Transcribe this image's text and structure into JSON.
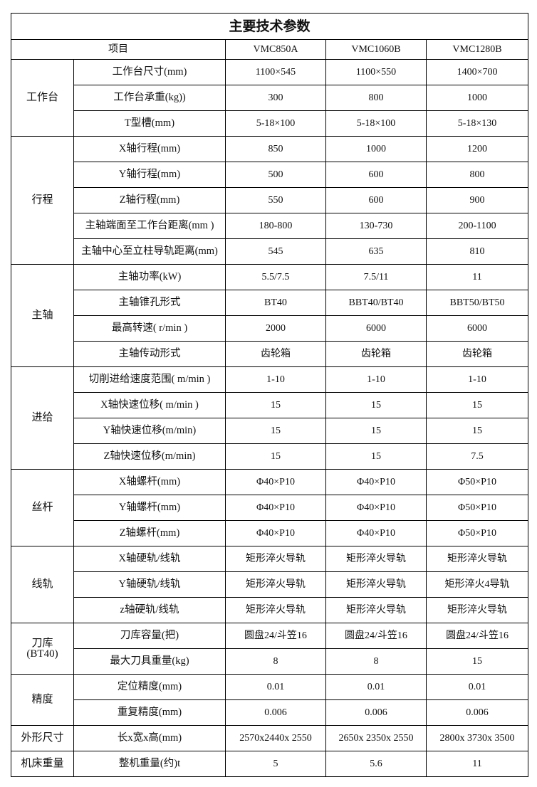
{
  "title": "主要技术参数",
  "header": {
    "item": "项目",
    "models": [
      "VMC850A",
      "VMC1060B",
      "VMC1280B"
    ]
  },
  "groups": [
    {
      "name": "工作台",
      "rows": [
        {
          "param": "工作台尺寸(mm)",
          "values": [
            "1100×545",
            "1100×550",
            "1400×700"
          ]
        },
        {
          "param": "工作台承重(kg))",
          "values": [
            "300",
            "800",
            "1000"
          ]
        },
        {
          "param": "T型槽(mm)",
          "values": [
            "5-18×100",
            "5-18×100",
            "5-18×130"
          ]
        }
      ]
    },
    {
      "name": "行程",
      "rows": [
        {
          "param": "X轴行程(mm)",
          "values": [
            "850",
            "1000",
            "1200"
          ]
        },
        {
          "param": "Y轴行程(mm)",
          "values": [
            "500",
            "600",
            "800"
          ]
        },
        {
          "param": "Z轴行程(mm)",
          "values": [
            "550",
            "600",
            "900"
          ]
        },
        {
          "param": "主轴端面至工作台距离(mm )",
          "values": [
            "180-800",
            "130-730",
            "200-1100"
          ]
        },
        {
          "param": "主轴中心至立柱导轨距离(mm)",
          "values": [
            "545",
            "635",
            "810"
          ]
        }
      ]
    },
    {
      "name": "主轴",
      "rows": [
        {
          "param": "主轴功率(kW)",
          "values": [
            "5.5/7.5",
            "7.5/11",
            "11"
          ]
        },
        {
          "param": "主轴锥孔形式",
          "values": [
            "BT40",
            "BBT40/BT40",
            "BBT50/BT50"
          ]
        },
        {
          "param": "最高转速( r/min )",
          "values": [
            "2000",
            "6000",
            "6000"
          ]
        },
        {
          "param": "主轴传动形式",
          "values": [
            "齿轮箱",
            "齿轮箱",
            "齿轮箱"
          ]
        }
      ]
    },
    {
      "name": "进给",
      "rows": [
        {
          "param": "切削进给速度范围( m/min )",
          "values": [
            "1-10",
            "1-10",
            "1-10"
          ]
        },
        {
          "param": "X轴快速位移( m/min )",
          "values": [
            "15",
            "15",
            "15"
          ]
        },
        {
          "param": "Y轴快速位移(m/min)",
          "values": [
            "15",
            "15",
            "15"
          ]
        },
        {
          "param": "Z轴快速位移(m/min)",
          "values": [
            "15",
            "15",
            "7.5"
          ]
        }
      ]
    },
    {
      "name": "丝杆",
      "rows": [
        {
          "param": "X轴螺杆(mm)",
          "values": [
            "Φ40×P10",
            "Φ40×P10",
            "Φ50×P10"
          ]
        },
        {
          "param": "Y轴螺杆(mm)",
          "values": [
            "Φ40×P10",
            "Φ40×P10",
            "Φ50×P10"
          ]
        },
        {
          "param": "Z轴螺杆(mm)",
          "values": [
            "Φ40×P10",
            "Φ40×P10",
            "Φ50×P10"
          ]
        }
      ]
    },
    {
      "name": "线轨",
      "rows": [
        {
          "param": "X轴硬轨/线轨",
          "values": [
            "矩形淬火导轨",
            "矩形淬火导轨",
            "矩形淬火导轨"
          ]
        },
        {
          "param": "Y轴硬轨/线轨",
          "values": [
            "矩形淬火导轨",
            "矩形淬火导轨",
            "矩形淬火4导轨"
          ]
        },
        {
          "param": "z轴硬轨/线轨",
          "values": [
            "矩形淬火导轨",
            "矩形淬火导轨",
            "矩形淬火导轨"
          ]
        }
      ]
    },
    {
      "name": "刀库\n(BT40)",
      "rows": [
        {
          "param": "刀库容量(把)",
          "values": [
            "圆盘24/斗笠16",
            "圆盘24/斗笠16",
            "圆盘24/斗笠16"
          ]
        },
        {
          "param": "最大刀具重量(kg)",
          "values": [
            "8",
            "8",
            "15"
          ]
        }
      ]
    },
    {
      "name": "精度",
      "rows": [
        {
          "param": "定位精度(mm)",
          "values": [
            "0.01",
            "0.01",
            "0.01"
          ]
        },
        {
          "param": "重复精度(mm)",
          "values": [
            "0.006",
            "0.006",
            "0.006"
          ]
        }
      ]
    },
    {
      "name": "外形尺寸",
      "rows": [
        {
          "param": "长x宽x高(mm)",
          "values": [
            "2570x2440x 2550",
            "2650x 2350x 2550",
            "2800x 3730x 3500"
          ]
        }
      ]
    },
    {
      "name": "机床重量",
      "rows": [
        {
          "param": "整机重量(约)t",
          "values": [
            "5",
            "5.6",
            "11"
          ]
        }
      ]
    }
  ]
}
